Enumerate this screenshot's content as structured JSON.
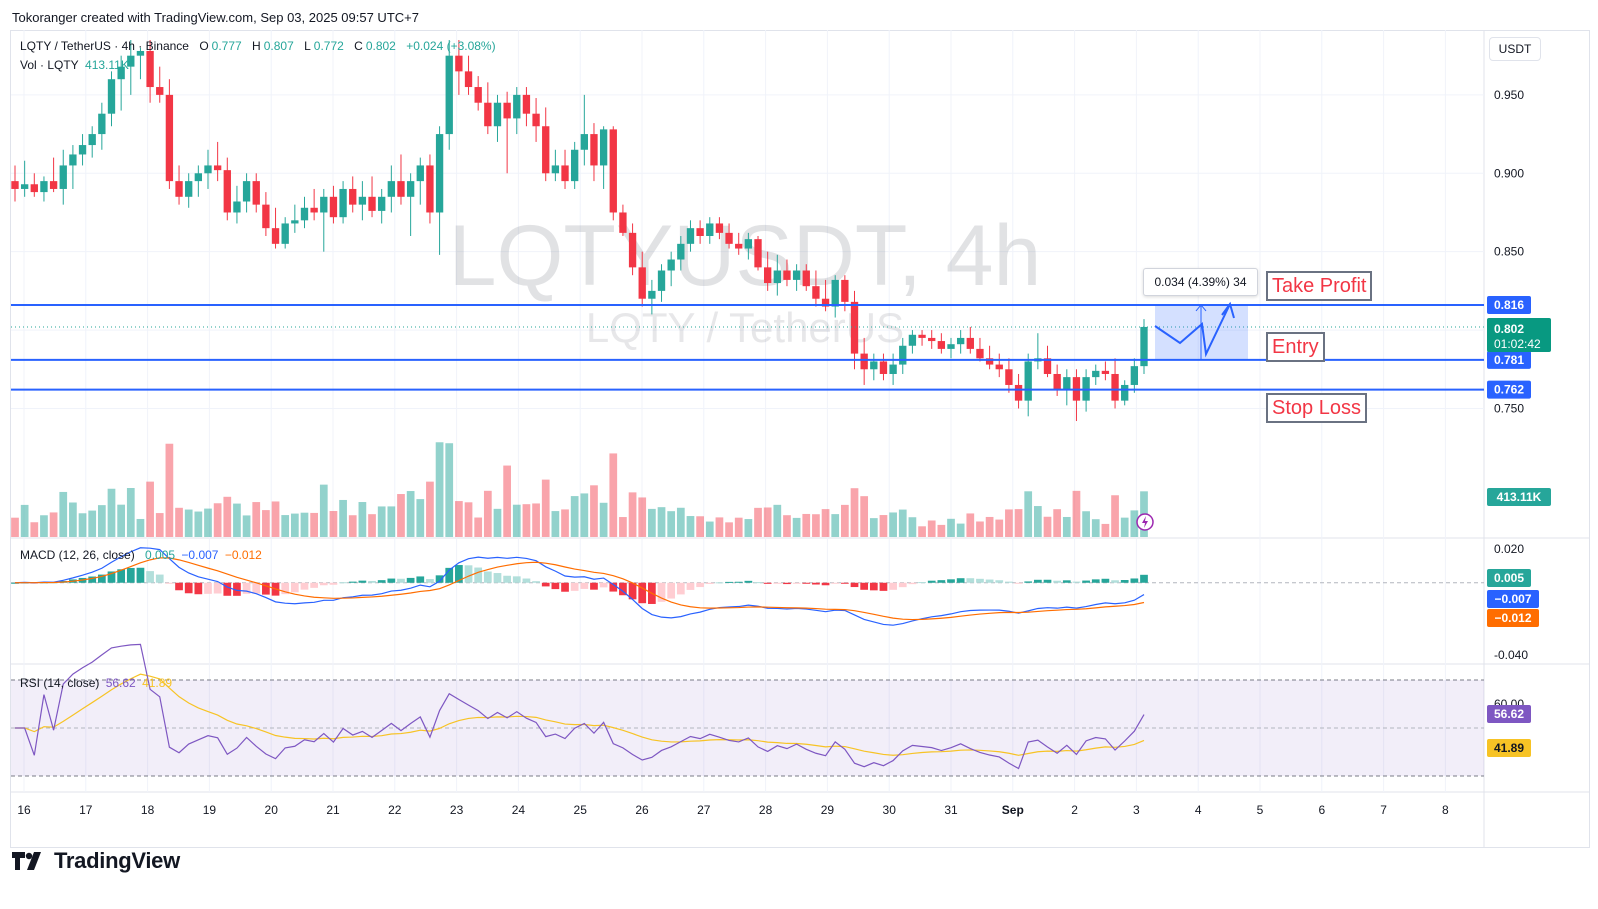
{
  "header": {
    "created_by": "Tokoranger created with TradingView.com, Sep 03, 2025 09:57 UTC+7"
  },
  "watermark": {
    "symbol": "LQTYUSDT, 4h",
    "name": "LQTY / TetherUS"
  },
  "legend": {
    "pair": "LQTY / TetherUS · 4h · Binance",
    "o_label": "O",
    "o": "0.777",
    "h_label": "H",
    "h": "0.807",
    "l_label": "L",
    "l": "0.772",
    "c_label": "C",
    "c": "0.802",
    "chg": "+0.024 (+3.08%)",
    "vol_label": "Vol · LQTY",
    "vol": "413.11K"
  },
  "currency_button": "USDT",
  "levels": {
    "take_profit": {
      "label": "Take Profit",
      "price": "0.816"
    },
    "entry": {
      "label": "Entry",
      "price": "0.781"
    },
    "stop_loss": {
      "label": "Stop Loss",
      "price": "0.762"
    }
  },
  "measure": {
    "text": "0.034 (4.39%) 34"
  },
  "price_axis": {
    "ticks": [
      "0.950",
      "0.900",
      "0.850",
      "0.750"
    ],
    "current": "0.802",
    "countdown": "01:02:42",
    "volume_badge": "413.11K"
  },
  "macd": {
    "label": "MACD (12, 26, close)",
    "hist": "0.005",
    "macd": "-0.007",
    "signal": "-0.012",
    "axis_ticks": [
      "0.020",
      "-0.040"
    ],
    "badges": [
      "0.005",
      "−0.007",
      "−0.012"
    ],
    "legend_values": [
      "0.005",
      "−0.007",
      "−0.012"
    ]
  },
  "rsi": {
    "label": "RSI (14, close)",
    "rsi": "56.62",
    "ma": "41.89",
    "axis_ticks": [
      "60.00"
    ],
    "badges": [
      "56.62",
      "41.89"
    ]
  },
  "time_axis": [
    "16",
    "17",
    "18",
    "19",
    "20",
    "21",
    "22",
    "23",
    "24",
    "25",
    "26",
    "27",
    "28",
    "29",
    "30",
    "31",
    "Sep",
    "2",
    "3",
    "4",
    "5",
    "6",
    "7",
    "8"
  ],
  "footer": {
    "brand": "TradingView"
  },
  "colors": {
    "up": "#26a69a",
    "down": "#f23645",
    "level_line": "#2962ff",
    "macd_line": "#2962ff",
    "signal_line": "#ff6d00",
    "rsi_line": "#7e57c2",
    "rsi_ma": "#f7c325"
  },
  "chart_data": {
    "type": "candlestick",
    "title": "LQTYUSDT, 4h",
    "timeframe": "4h",
    "x_range": [
      "Aug 16",
      "Sep 3"
    ],
    "y_range": [
      0.735,
      0.985
    ],
    "candles_ohlc": [
      [
        0.895,
        0.905,
        0.882,
        0.89
      ],
      [
        0.89,
        0.908,
        0.885,
        0.893
      ],
      [
        0.893,
        0.9,
        0.885,
        0.888
      ],
      [
        0.888,
        0.898,
        0.882,
        0.895
      ],
      [
        0.895,
        0.91,
        0.888,
        0.89
      ],
      [
        0.89,
        0.915,
        0.88,
        0.905
      ],
      [
        0.905,
        0.918,
        0.89,
        0.912
      ],
      [
        0.912,
        0.925,
        0.905,
        0.918
      ],
      [
        0.918,
        0.93,
        0.91,
        0.925
      ],
      [
        0.925,
        0.945,
        0.915,
        0.938
      ],
      [
        0.938,
        0.965,
        0.93,
        0.96
      ],
      [
        0.96,
        0.975,
        0.94,
        0.968
      ],
      [
        0.968,
        0.985,
        0.95,
        0.975
      ],
      [
        0.975,
        0.98,
        0.96,
        0.978
      ],
      [
        0.978,
        0.985,
        0.945,
        0.955
      ],
      [
        0.955,
        0.968,
        0.945,
        0.95
      ],
      [
        0.95,
        0.96,
        0.89,
        0.895
      ],
      [
        0.895,
        0.905,
        0.88,
        0.885
      ],
      [
        0.885,
        0.9,
        0.878,
        0.895
      ],
      [
        0.895,
        0.905,
        0.885,
        0.9
      ],
      [
        0.9,
        0.915,
        0.89,
        0.905
      ],
      [
        0.905,
        0.92,
        0.895,
        0.902
      ],
      [
        0.902,
        0.91,
        0.87,
        0.875
      ],
      [
        0.875,
        0.892,
        0.868,
        0.882
      ],
      [
        0.882,
        0.9,
        0.875,
        0.895
      ],
      [
        0.895,
        0.9,
        0.875,
        0.88
      ],
      [
        0.88,
        0.888,
        0.86,
        0.865
      ],
      [
        0.865,
        0.878,
        0.852,
        0.855
      ],
      [
        0.855,
        0.872,
        0.852,
        0.868
      ],
      [
        0.868,
        0.88,
        0.862,
        0.87
      ],
      [
        0.87,
        0.885,
        0.865,
        0.878
      ],
      [
        0.878,
        0.89,
        0.87,
        0.875
      ],
      [
        0.875,
        0.89,
        0.85,
        0.885
      ],
      [
        0.885,
        0.892,
        0.868,
        0.872
      ],
      [
        0.872,
        0.895,
        0.868,
        0.89
      ],
      [
        0.89,
        0.898,
        0.875,
        0.88
      ],
      [
        0.88,
        0.895,
        0.87,
        0.885
      ],
      [
        0.885,
        0.898,
        0.872,
        0.876
      ],
      [
        0.876,
        0.89,
        0.868,
        0.885
      ],
      [
        0.885,
        0.905,
        0.875,
        0.895
      ],
      [
        0.895,
        0.912,
        0.88,
        0.885
      ],
      [
        0.885,
        0.9,
        0.86,
        0.895
      ],
      [
        0.895,
        0.91,
        0.88,
        0.905
      ],
      [
        0.905,
        0.912,
        0.868,
        0.875
      ],
      [
        0.875,
        0.93,
        0.848,
        0.925
      ],
      [
        0.925,
        0.985,
        0.915,
        0.975
      ],
      [
        0.975,
        0.985,
        0.95,
        0.965
      ],
      [
        0.965,
        0.975,
        0.95,
        0.955
      ],
      [
        0.955,
        0.962,
        0.94,
        0.945
      ],
      [
        0.945,
        0.958,
        0.925,
        0.93
      ],
      [
        0.93,
        0.95,
        0.92,
        0.945
      ],
      [
        0.945,
        0.952,
        0.9,
        0.935
      ],
      [
        0.935,
        0.955,
        0.925,
        0.95
      ],
      [
        0.95,
        0.955,
        0.93,
        0.938
      ],
      [
        0.938,
        0.948,
        0.92,
        0.93
      ],
      [
        0.93,
        0.942,
        0.895,
        0.9
      ],
      [
        0.9,
        0.915,
        0.895,
        0.905
      ],
      [
        0.905,
        0.915,
        0.89,
        0.895
      ],
      [
        0.895,
        0.92,
        0.89,
        0.915
      ],
      [
        0.915,
        0.95,
        0.905,
        0.925
      ],
      [
        0.925,
        0.932,
        0.895,
        0.905
      ],
      [
        0.905,
        0.93,
        0.89,
        0.928
      ],
      [
        0.928,
        0.93,
        0.87,
        0.875
      ],
      [
        0.875,
        0.88,
        0.86,
        0.862
      ],
      [
        0.862,
        0.868,
        0.835,
        0.84
      ],
      [
        0.84,
        0.85,
        0.815,
        0.82
      ],
      [
        0.82,
        0.832,
        0.81,
        0.825
      ],
      [
        0.825,
        0.842,
        0.818,
        0.838
      ],
      [
        0.838,
        0.85,
        0.828,
        0.845
      ],
      [
        0.845,
        0.86,
        0.838,
        0.855
      ],
      [
        0.855,
        0.87,
        0.85,
        0.865
      ],
      [
        0.865,
        0.87,
        0.855,
        0.86
      ],
      [
        0.86,
        0.872,
        0.855,
        0.868
      ],
      [
        0.868,
        0.872,
        0.858,
        0.862
      ],
      [
        0.862,
        0.868,
        0.852,
        0.855
      ],
      [
        0.855,
        0.862,
        0.848,
        0.852
      ],
      [
        0.852,
        0.862,
        0.845,
        0.858
      ],
      [
        0.858,
        0.86,
        0.838,
        0.84
      ],
      [
        0.84,
        0.85,
        0.825,
        0.83
      ],
      [
        0.83,
        0.848,
        0.822,
        0.838
      ],
      [
        0.838,
        0.845,
        0.828,
        0.832
      ],
      [
        0.832,
        0.842,
        0.825,
        0.838
      ],
      [
        0.838,
        0.842,
        0.825,
        0.828
      ],
      [
        0.828,
        0.838,
        0.815,
        0.82
      ],
      [
        0.82,
        0.832,
        0.812,
        0.815
      ],
      [
        0.815,
        0.835,
        0.808,
        0.832
      ],
      [
        0.832,
        0.835,
        0.812,
        0.818
      ],
      [
        0.818,
        0.825,
        0.775,
        0.785
      ],
      [
        0.785,
        0.795,
        0.765,
        0.775
      ],
      [
        0.775,
        0.785,
        0.768,
        0.78
      ],
      [
        0.78,
        0.785,
        0.768,
        0.772
      ],
      [
        0.772,
        0.785,
        0.765,
        0.778
      ],
      [
        0.778,
        0.795,
        0.772,
        0.79
      ],
      [
        0.79,
        0.8,
        0.785,
        0.797
      ],
      [
        0.797,
        0.8,
        0.79,
        0.795
      ],
      [
        0.795,
        0.8,
        0.788,
        0.793
      ],
      [
        0.793,
        0.798,
        0.785,
        0.788
      ],
      [
        0.788,
        0.795,
        0.782,
        0.791
      ],
      [
        0.791,
        0.8,
        0.785,
        0.795
      ],
      [
        0.795,
        0.802,
        0.785,
        0.788
      ],
      [
        0.788,
        0.795,
        0.78,
        0.782
      ],
      [
        0.782,
        0.79,
        0.775,
        0.778
      ],
      [
        0.778,
        0.785,
        0.77,
        0.775
      ],
      [
        0.775,
        0.782,
        0.76,
        0.765
      ],
      [
        0.765,
        0.772,
        0.75,
        0.755
      ],
      [
        0.755,
        0.785,
        0.745,
        0.78
      ],
      [
        0.78,
        0.798,
        0.775,
        0.782
      ],
      [
        0.782,
        0.79,
        0.77,
        0.772
      ],
      [
        0.772,
        0.778,
        0.758,
        0.762
      ],
      [
        0.762,
        0.775,
        0.752,
        0.77
      ],
      [
        0.77,
        0.775,
        0.742,
        0.755
      ],
      [
        0.755,
        0.775,
        0.748,
        0.77
      ],
      [
        0.77,
        0.778,
        0.765,
        0.774
      ],
      [
        0.774,
        0.78,
        0.768,
        0.772
      ],
      [
        0.772,
        0.782,
        0.75,
        0.755
      ],
      [
        0.755,
        0.768,
        0.752,
        0.765
      ],
      [
        0.765,
        0.782,
        0.76,
        0.777
      ],
      [
        0.777,
        0.807,
        0.772,
        0.802
      ]
    ]
  }
}
